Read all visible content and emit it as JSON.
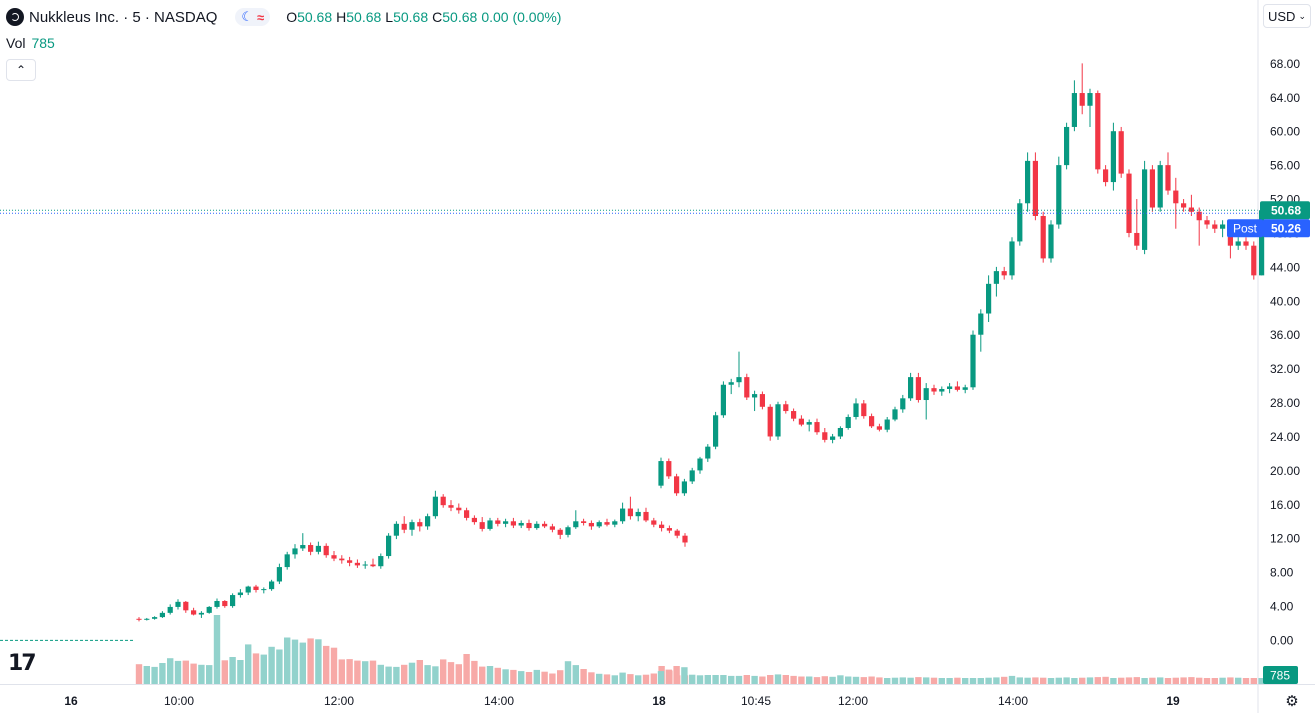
{
  "header": {
    "symbol_title": "Nukkleus Inc. · 5 · NASDAQ",
    "session_icon": "moon-icon",
    "session_symbol": "≈",
    "ohlc": [
      {
        "key": "O",
        "value": "50.68"
      },
      {
        "key": "H",
        "value": "50.68"
      },
      {
        "key": "L",
        "value": "50.68"
      },
      {
        "key": "C",
        "value": "50.68"
      },
      {
        "key": "",
        "value": "0.00 (0.00%)"
      }
    ]
  },
  "volume": {
    "label": "Vol",
    "value": "785"
  },
  "collapse_symbol": "⌃",
  "currency": {
    "label": "USD",
    "chevron": "⌄"
  },
  "logo_text": "17",
  "colors": {
    "up": "#089981",
    "down": "#f23645",
    "up_vol": "#92d2cc",
    "down_vol": "#f7a9a7",
    "post": "#2962ff",
    "last": "#089981"
  },
  "chart_data": {
    "type": "candlestick",
    "ylim": [
      -2.8,
      69
    ],
    "y_ticks": [
      "68.00",
      "64.00",
      "60.00",
      "56.00",
      "52.00",
      "48.00",
      "44.00",
      "40.00",
      "36.00",
      "32.00",
      "28.00",
      "24.00",
      "20.00",
      "16.00",
      "12.00",
      "8.00",
      "4.00",
      "0.00"
    ],
    "x_ticks": [
      "16",
      "10:00",
      "12:00",
      "14:00",
      "18",
      "10:45",
      "12:00",
      "14:00",
      "19"
    ],
    "last_price": {
      "value": 50.68,
      "label": "50.68"
    },
    "post_price": {
      "tag": "Post",
      "value": 50.26,
      "label": "50.26"
    },
    "volume_label": "785",
    "pre_market_price": 1.6,
    "candles_day1": [
      [
        2.5,
        2.7,
        2.2,
        2.4
      ],
      [
        2.4,
        2.6,
        2.3,
        2.5
      ],
      [
        2.5,
        2.8,
        2.4,
        2.7
      ],
      [
        2.7,
        3.4,
        2.6,
        3.2
      ],
      [
        3.2,
        4.2,
        3.0,
        3.9
      ],
      [
        3.9,
        4.8,
        3.6,
        4.5
      ],
      [
        4.5,
        4.6,
        3.2,
        3.5
      ],
      [
        3.5,
        3.8,
        2.9,
        3.0
      ],
      [
        3.0,
        3.4,
        2.6,
        3.2
      ],
      [
        3.2,
        4.0,
        3.1,
        3.9
      ],
      [
        3.9,
        4.9,
        3.7,
        4.6
      ],
      [
        4.6,
        4.7,
        3.8,
        4.0
      ],
      [
        4.0,
        5.5,
        3.8,
        5.3
      ],
      [
        5.3,
        6.0,
        5.0,
        5.6
      ],
      [
        5.6,
        6.4,
        5.3,
        6.3
      ],
      [
        6.3,
        6.5,
        5.6,
        5.9
      ],
      [
        5.9,
        6.2,
        5.5,
        6.0
      ],
      [
        6.0,
        7.1,
        5.8,
        6.9
      ],
      [
        6.9,
        9.0,
        6.6,
        8.6
      ],
      [
        8.6,
        10.4,
        8.3,
        10.1
      ],
      [
        10.1,
        11.3,
        9.6,
        10.8
      ],
      [
        10.8,
        12.6,
        10.5,
        11.2
      ],
      [
        11.2,
        11.5,
        10.0,
        10.4
      ],
      [
        10.4,
        11.6,
        10.1,
        11.1
      ],
      [
        11.1,
        11.4,
        9.7,
        10.0
      ],
      [
        10.0,
        10.5,
        9.3,
        9.6
      ],
      [
        9.6,
        10.0,
        9.0,
        9.4
      ],
      [
        9.4,
        9.8,
        8.7,
        9.1
      ],
      [
        9.1,
        9.5,
        8.5,
        8.8
      ],
      [
        8.8,
        9.3,
        8.4,
        8.9
      ],
      [
        8.9,
        9.6,
        8.6,
        8.7
      ],
      [
        8.7,
        10.2,
        8.4,
        9.9
      ],
      [
        9.9,
        12.6,
        9.6,
        12.3
      ],
      [
        12.3,
        14.0,
        11.9,
        13.7
      ],
      [
        13.7,
        14.6,
        12.6,
        13.0
      ],
      [
        13.0,
        14.2,
        12.3,
        13.9
      ],
      [
        13.9,
        14.3,
        12.8,
        13.4
      ],
      [
        13.4,
        14.9,
        13.0,
        14.6
      ],
      [
        14.6,
        17.6,
        14.3,
        16.9
      ],
      [
        16.9,
        17.2,
        15.6,
        15.9
      ],
      [
        15.9,
        16.5,
        15.2,
        15.6
      ],
      [
        15.6,
        16.1,
        14.9,
        15.3
      ],
      [
        15.3,
        15.6,
        14.1,
        14.4
      ],
      [
        14.4,
        14.7,
        13.6,
        13.9
      ],
      [
        13.9,
        14.5,
        12.8,
        13.1
      ],
      [
        13.1,
        14.4,
        12.9,
        14.1
      ],
      [
        14.1,
        14.4,
        13.4,
        13.7
      ],
      [
        13.7,
        14.3,
        13.3,
        14.0
      ],
      [
        14.0,
        14.4,
        13.2,
        13.5
      ],
      [
        13.5,
        14.1,
        13.2,
        13.8
      ],
      [
        13.8,
        14.2,
        12.9,
        13.2
      ],
      [
        13.2,
        14.0,
        13.0,
        13.7
      ],
      [
        13.7,
        14.0,
        13.2,
        13.4
      ],
      [
        13.4,
        13.7,
        12.7,
        13.0
      ],
      [
        13.0,
        13.2,
        11.9,
        12.4
      ],
      [
        12.4,
        13.5,
        12.1,
        13.3
      ],
      [
        13.3,
        15.3,
        13.1,
        14.0
      ],
      [
        14.0,
        14.3,
        13.5,
        13.8
      ],
      [
        13.8,
        14.1,
        13.0,
        13.4
      ],
      [
        13.4,
        14.1,
        13.2,
        13.9
      ],
      [
        13.9,
        14.3,
        13.4,
        13.6
      ],
      [
        13.6,
        14.2,
        13.3,
        14.0
      ],
      [
        14.0,
        16.2,
        13.7,
        15.5
      ],
      [
        15.5,
        16.9,
        14.2,
        14.6
      ],
      [
        14.6,
        15.5,
        14.0,
        15.1
      ],
      [
        15.1,
        15.6,
        13.9,
        14.1
      ],
      [
        14.1,
        14.4,
        13.3,
        13.6
      ],
      [
        13.6,
        14.0,
        12.8,
        13.2
      ],
      [
        13.2,
        13.5,
        12.6,
        12.9
      ],
      [
        12.9,
        13.1,
        12.0,
        12.3
      ],
      [
        12.3,
        12.6,
        11.0,
        11.5
      ]
    ],
    "candles_day2": [
      [
        18.2,
        21.5,
        17.9,
        21.1
      ],
      [
        21.1,
        21.4,
        19.0,
        19.3
      ],
      [
        19.3,
        19.6,
        17.0,
        17.3
      ],
      [
        17.3,
        19.0,
        17.0,
        18.7
      ],
      [
        18.7,
        20.3,
        18.4,
        20.0
      ],
      [
        20.0,
        21.6,
        19.6,
        21.4
      ],
      [
        21.4,
        23.1,
        21.0,
        22.8
      ],
      [
        22.8,
        26.9,
        22.5,
        26.5
      ],
      [
        26.5,
        30.5,
        26.2,
        30.1
      ],
      [
        30.1,
        30.8,
        29.0,
        30.4
      ],
      [
        30.4,
        34.0,
        29.8,
        31.0
      ],
      [
        31.0,
        31.4,
        28.3,
        28.6
      ],
      [
        28.6,
        29.4,
        27.0,
        29.0
      ],
      [
        29.0,
        29.3,
        27.2,
        27.5
      ],
      [
        27.5,
        27.8,
        23.5,
        24.0
      ],
      [
        24.0,
        28.1,
        23.6,
        27.8
      ],
      [
        27.8,
        28.2,
        26.7,
        27.0
      ],
      [
        27.0,
        27.3,
        25.8,
        26.1
      ],
      [
        26.1,
        26.5,
        25.2,
        25.4
      ],
      [
        25.4,
        26.0,
        24.6,
        25.7
      ],
      [
        25.7,
        26.1,
        24.2,
        24.5
      ],
      [
        24.5,
        25.0,
        23.3,
        23.6
      ],
      [
        23.6,
        24.3,
        23.2,
        24.0
      ],
      [
        24.0,
        25.2,
        23.7,
        25.0
      ],
      [
        25.0,
        26.6,
        24.8,
        26.3
      ],
      [
        26.3,
        28.5,
        26.0,
        27.9
      ],
      [
        27.9,
        28.3,
        26.1,
        26.4
      ],
      [
        26.4,
        26.7,
        25.0,
        25.2
      ],
      [
        25.2,
        25.5,
        24.6,
        24.8
      ],
      [
        24.8,
        26.3,
        24.5,
        26.0
      ],
      [
        26.0,
        27.5,
        25.8,
        27.2
      ],
      [
        27.2,
        28.9,
        26.8,
        28.5
      ],
      [
        28.5,
        31.5,
        28.2,
        31.0
      ],
      [
        31.0,
        31.5,
        28.0,
        28.3
      ],
      [
        28.3,
        30.3,
        26.0,
        29.7
      ],
      [
        29.7,
        30.1,
        28.9,
        29.3
      ],
      [
        29.3,
        29.9,
        28.8,
        29.6
      ],
      [
        29.6,
        30.3,
        29.1,
        29.9
      ],
      [
        29.9,
        30.5,
        29.3,
        29.5
      ],
      [
        29.5,
        30.1,
        29.1,
        29.8
      ],
      [
        29.8,
        36.5,
        29.5,
        36.0
      ],
      [
        36.0,
        39.0,
        34.0,
        38.5
      ],
      [
        38.5,
        43.0,
        37.5,
        42.0
      ],
      [
        42.0,
        44.0,
        40.5,
        43.5
      ],
      [
        43.5,
        44.0,
        42.5,
        43.0
      ],
      [
        43.0,
        47.5,
        42.5,
        47.0
      ],
      [
        47.0,
        52.0,
        46.5,
        51.5
      ],
      [
        51.5,
        57.5,
        50.5,
        56.5
      ],
      [
        56.5,
        57.5,
        49.5,
        50.0
      ],
      [
        50.0,
        50.5,
        44.5,
        45.0
      ],
      [
        45.0,
        49.5,
        44.5,
        49.0
      ],
      [
        49.0,
        57.0,
        48.5,
        56.0
      ],
      [
        56.0,
        61.0,
        55.5,
        60.5
      ],
      [
        60.5,
        66.0,
        60.0,
        64.5
      ],
      [
        64.5,
        68.0,
        62.0,
        63.0
      ],
      [
        63.0,
        65.0,
        60.5,
        64.5
      ],
      [
        64.5,
        64.8,
        55.0,
        55.5
      ],
      [
        55.5,
        56.0,
        53.5,
        54.0
      ],
      [
        54.0,
        61.0,
        53.0,
        60.0
      ],
      [
        60.0,
        60.5,
        54.5,
        55.0
      ],
      [
        55.0,
        55.5,
        47.5,
        48.0
      ],
      [
        48.0,
        52.0,
        46.0,
        46.5
      ],
      [
        46.0,
        56.5,
        45.5,
        55.5
      ],
      [
        55.5,
        56.0,
        50.5,
        51.0
      ],
      [
        51.0,
        56.5,
        50.5,
        56.0
      ],
      [
        56.0,
        57.5,
        52.5,
        53.0
      ],
      [
        53.0,
        54.5,
        48.5,
        51.5
      ],
      [
        51.5,
        52.0,
        50.5,
        51.0
      ],
      [
        51.0,
        52.5,
        50.0,
        50.5
      ],
      [
        50.5,
        51.0,
        46.5,
        49.5
      ],
      [
        49.5,
        50.0,
        48.5,
        49.0
      ],
      [
        49.0,
        49.5,
        48.0,
        48.5
      ],
      [
        48.5,
        49.5,
        47.5,
        49.0
      ],
      [
        49.0,
        49.5,
        45.0,
        46.5
      ],
      [
        46.5,
        47.5,
        46.0,
        47.0
      ],
      [
        47.0,
        47.5,
        46.0,
        46.5
      ],
      [
        46.5,
        47.0,
        42.5,
        43.0
      ],
      [
        43.0,
        51.0,
        43.0,
        50.68
      ]
    ],
    "volume_day1": [
      0.66,
      0.6,
      0.57,
      0.7,
      0.86,
      0.77,
      0.78,
      0.68,
      0.64,
      0.63,
      2.3,
      0.79,
      0.9,
      0.8,
      1.32,
      1.02,
      0.98,
      1.24,
      1.15,
      1.55,
      1.48,
      1.38,
      1.52,
      1.49,
      1.27,
      1.21,
      0.82,
      0.83,
      0.78,
      0.76,
      0.78,
      0.64,
      0.58,
      0.57,
      0.64,
      0.71,
      0.8,
      0.63,
      0.59,
      0.82,
      0.73,
      0.66,
      1.0,
      0.77,
      0.58,
      0.6,
      0.54,
      0.49,
      0.47,
      0.43,
      0.4,
      0.47,
      0.41,
      0.35,
      0.46,
      0.76,
      0.63,
      0.5,
      0.39,
      0.34,
      0.32,
      0.29,
      0.38,
      0.33,
      0.29,
      0.31,
      0.35,
      0.6,
      0.45,
      0.29,
      0.29
    ],
    "volume_day2": [
      0.43,
      0.48,
      0.6,
      0.56,
      0.31,
      0.29,
      0.3,
      0.3,
      0.3,
      0.27,
      0.27,
      0.3,
      0.27,
      0.25,
      0.3,
      0.32,
      0.3,
      0.27,
      0.25,
      0.25,
      0.23,
      0.26,
      0.24,
      0.29,
      0.25,
      0.24,
      0.23,
      0.25,
      0.22,
      0.2,
      0.21,
      0.22,
      0.21,
      0.23,
      0.22,
      0.21,
      0.2,
      0.2,
      0.21,
      0.2,
      0.2,
      0.2,
      0.21,
      0.22,
      0.24,
      0.27,
      0.22,
      0.21,
      0.22,
      0.21,
      0.2,
      0.21,
      0.22,
      0.2,
      0.21,
      0.22,
      0.23,
      0.24,
      0.2,
      0.21,
      0.22,
      0.23,
      0.2,
      0.21,
      0.22,
      0.2,
      0.21,
      0.22,
      0.23,
      0.21,
      0.2,
      0.2,
      0.21,
      0.22,
      0.21,
      0.2,
      0.2,
      0.2
    ]
  }
}
